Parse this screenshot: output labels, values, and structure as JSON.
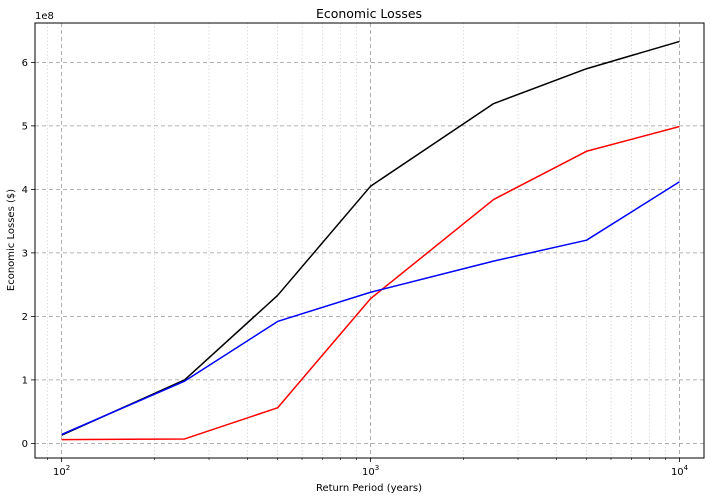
{
  "chart_data": {
    "type": "line",
    "title": "Economic Losses",
    "xlabel": "Return Period (years)",
    "ylabel": "Economic Losses ($)",
    "xscale": "log",
    "xlim": [
      82,
      12000
    ],
    "ylim": [
      -0.23,
      6.62
    ],
    "y_offset_label": "1e8",
    "grid": true,
    "x_major_ticks": [
      {
        "value": 100,
        "base": "10",
        "exp": "2"
      },
      {
        "value": 1000,
        "base": "10",
        "exp": "3"
      },
      {
        "value": 10000,
        "base": "10",
        "exp": "4"
      }
    ],
    "y_ticks": [
      0,
      1,
      2,
      3,
      4,
      5,
      6
    ],
    "x": [
      100,
      250,
      500,
      1000,
      2500,
      5000,
      10000
    ],
    "series": [
      {
        "color": "#000000",
        "values": [
          0.13,
          1.0,
          2.33,
          4.05,
          5.35,
          5.9,
          6.33
        ]
      },
      {
        "color": "#ff0000",
        "values": [
          0.06,
          0.07,
          0.56,
          2.28,
          3.84,
          4.6,
          4.99
        ]
      },
      {
        "color": "#0000ff",
        "values": [
          0.14,
          0.98,
          1.92,
          2.38,
          2.87,
          3.2,
          4.12
        ]
      }
    ]
  }
}
